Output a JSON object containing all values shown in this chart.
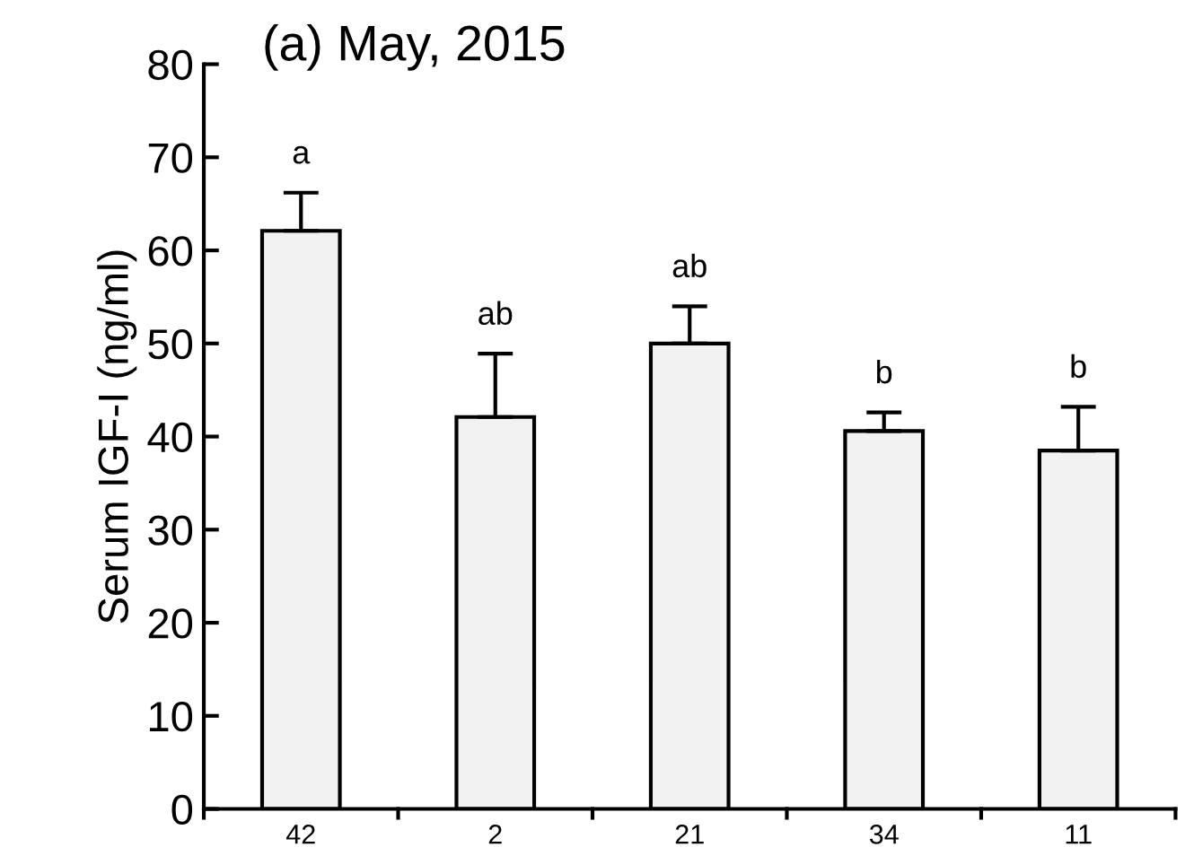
{
  "chart_data": {
    "type": "bar",
    "title": "(a) May, 2015",
    "ylabel": "Serum IGF-I (ng/ml)",
    "categories": [
      "42",
      "2",
      "21",
      "34",
      "11"
    ],
    "values": [
      62.1,
      42.1,
      50.0,
      40.6,
      38.5
    ],
    "errors": [
      [
        62.1,
        66.2
      ],
      [
        42.1,
        48.9
      ],
      [
        50.0,
        54.0
      ],
      [
        40.6,
        42.6
      ],
      [
        38.5,
        43.2
      ]
    ],
    "color": "#f2f2f2",
    "ylim": [
      0,
      80
    ],
    "yticks": [
      0,
      10,
      20,
      30,
      40,
      50,
      60,
      70,
      80
    ],
    "grid": false,
    "legend": false,
    "annotations": [
      "a",
      "ab",
      "ab",
      "b",
      "b"
    ]
  }
}
